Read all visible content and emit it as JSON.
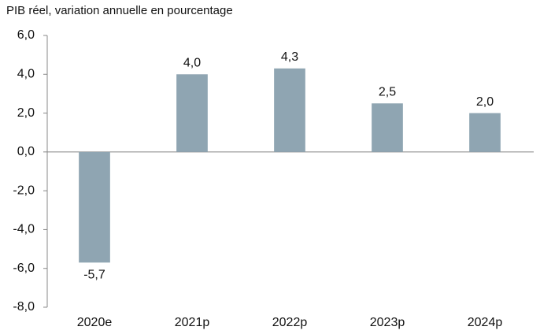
{
  "chart_data": {
    "type": "bar",
    "title": "PIB réel, variation annuelle en pourcentage",
    "categories": [
      "2020e",
      "2021p",
      "2022p",
      "2023p",
      "2024p"
    ],
    "values": [
      -5.7,
      4.0,
      4.3,
      2.5,
      2.0
    ],
    "value_labels": [
      "-5,7",
      "4,0",
      "4,3",
      "2,5",
      "2,0"
    ],
    "color": "#8fa5b2",
    "ylim": [
      -8,
      6
    ],
    "yticks": [
      {
        "value": -8,
        "label": "-8,0"
      },
      {
        "value": -6,
        "label": "-6,0"
      },
      {
        "value": -4,
        "label": "-4,0"
      },
      {
        "value": -2,
        "label": "-2,0"
      },
      {
        "value": 0,
        "label": "0,0"
      },
      {
        "value": 2,
        "label": "2,0"
      },
      {
        "value": 4,
        "label": "4,0"
      },
      {
        "value": 6,
        "label": "6,0"
      }
    ],
    "grid": false
  }
}
